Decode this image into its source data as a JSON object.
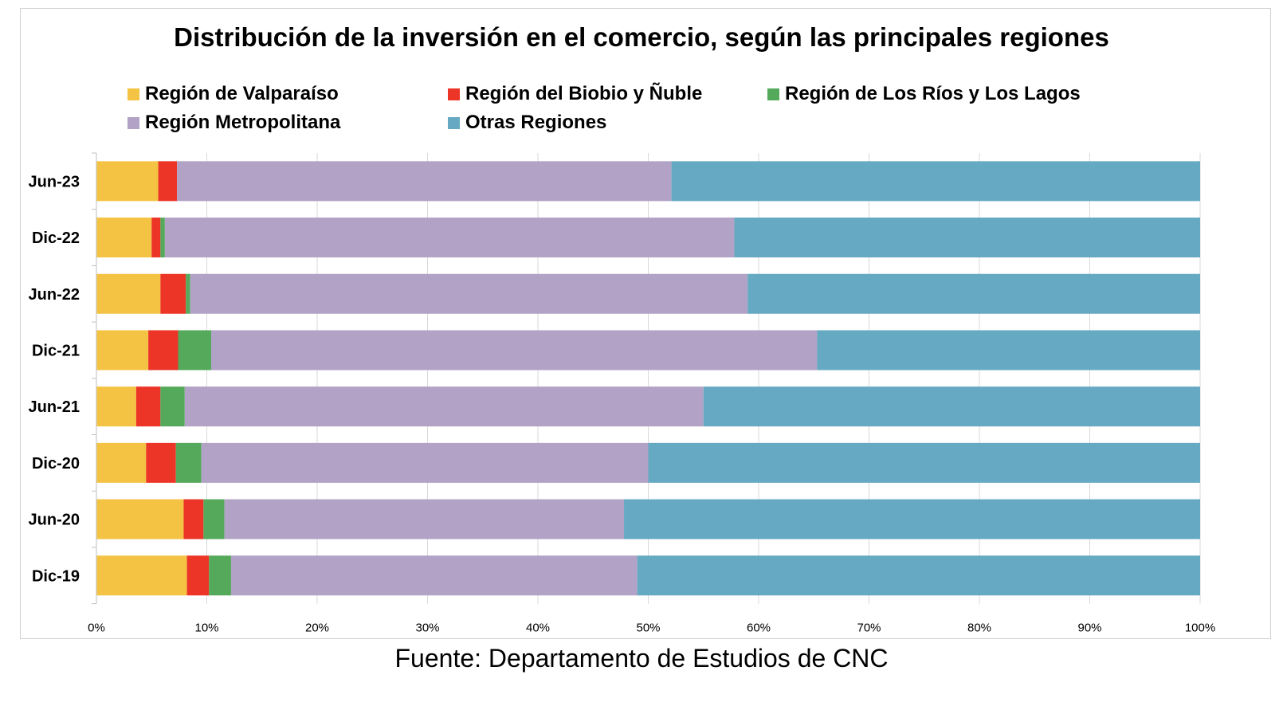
{
  "chart_data": {
    "type": "bar",
    "orientation": "horizontal",
    "stacked": "percent",
    "title": "Distribución de la inversión en el comercio, según las principales regiones",
    "categories": [
      "Jun-23",
      "Dic-22",
      "Jun-22",
      "Dic-21",
      "Jun-21",
      "Dic-20",
      "Jun-20",
      "Dic-19"
    ],
    "series": [
      {
        "name": "Región de Valparaíso",
        "color": "#F4C343",
        "values": [
          5.6,
          5.0,
          5.8,
          4.7,
          3.6,
          4.5,
          7.9,
          8.2
        ]
      },
      {
        "name": "Región del Biobio y Ñuble",
        "color": "#EC3527",
        "values": [
          1.7,
          0.8,
          2.3,
          2.7,
          2.2,
          2.7,
          1.8,
          2.0
        ]
      },
      {
        "name": "Región de Los Ríos y Los Lagos",
        "color": "#55A95A",
        "values": [
          0.0,
          0.4,
          0.4,
          3.0,
          2.2,
          2.3,
          1.9,
          2.0
        ]
      },
      {
        "name": "Región Metropolitana",
        "color": "#B1A2C6",
        "values": [
          44.8,
          51.6,
          50.5,
          54.9,
          47.0,
          40.5,
          36.2,
          36.8
        ]
      },
      {
        "name": "Otras Regiones",
        "color": "#65AAC2",
        "values": [
          47.9,
          42.2,
          41.0,
          34.7,
          45.0,
          50.0,
          52.2,
          51.0
        ]
      }
    ],
    "xlim": [
      0,
      100
    ],
    "x_ticks": [
      "0%",
      "10%",
      "20%",
      "30%",
      "40%",
      "50%",
      "60%",
      "70%",
      "80%",
      "90%",
      "100%"
    ],
    "grid": true,
    "legend_position": "top"
  },
  "source": "Fuente: Departamento de Estudios de CNC"
}
